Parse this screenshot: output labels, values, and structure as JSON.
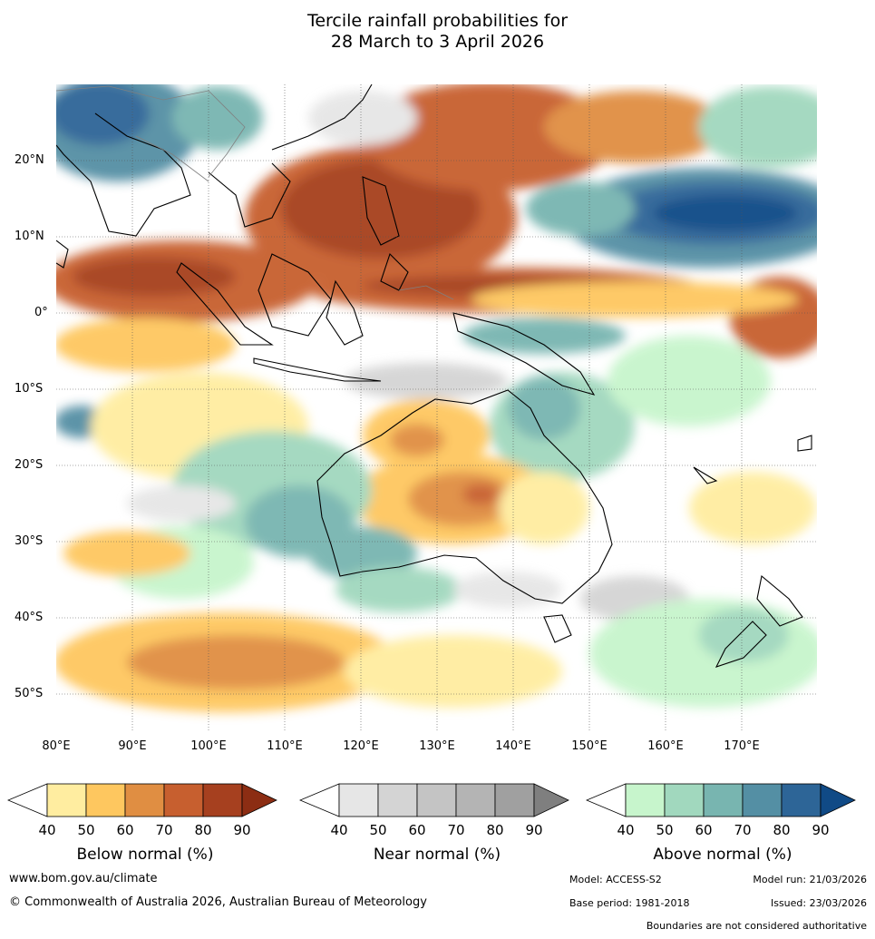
{
  "title_line1": "Tercile rainfall probabilities for",
  "title_line2": "28 March to 3 April 2026",
  "lat_labels": [
    "20°N",
    "10°N",
    "0°",
    "10°S",
    "20°S",
    "30°S",
    "40°S",
    "50°S"
  ],
  "lon_labels": [
    "80°E",
    "90°E",
    "100°E",
    "110°E",
    "120°E",
    "130°E",
    "140°E",
    "150°E",
    "160°E",
    "170°E"
  ],
  "colorbars": [
    {
      "title": "Below normal (%)",
      "ticks": [
        "40",
        "50",
        "60",
        "70",
        "80",
        "90"
      ],
      "colors": [
        "#ffffff",
        "#ffeda0",
        "#fec75f",
        "#e08e42",
        "#c75f2f",
        "#a6401f",
        "#8c2d13"
      ]
    },
    {
      "title": "Near normal (%)",
      "ticks": [
        "40",
        "50",
        "60",
        "70",
        "80",
        "90"
      ],
      "colors": [
        "#ffffff",
        "#e6e6e6",
        "#d4d4d4",
        "#c4c4c4",
        "#b4b4b4",
        "#a0a0a0",
        "#7f7f7f"
      ]
    },
    {
      "title": "Above normal (%)",
      "ticks": [
        "40",
        "50",
        "60",
        "70",
        "80",
        "90"
      ],
      "colors": [
        "#ffffff",
        "#c7f5cc",
        "#a1d8be",
        "#78b5b0",
        "#548fa4",
        "#2d6597",
        "#104a86"
      ]
    }
  ],
  "footer": {
    "website": "www.bom.gov.au/climate",
    "copyright": "© Commonwealth of Australia 2026, Australian Bureau of Meteorology",
    "model": "Model: ACCESS-S2",
    "model_run": "Model run: 21/03/2026",
    "base_period": "Base period: 1981-2018",
    "issued": "Issued: 23/03/2026",
    "boundaries": "Boundaries are not considered authoritative"
  }
}
